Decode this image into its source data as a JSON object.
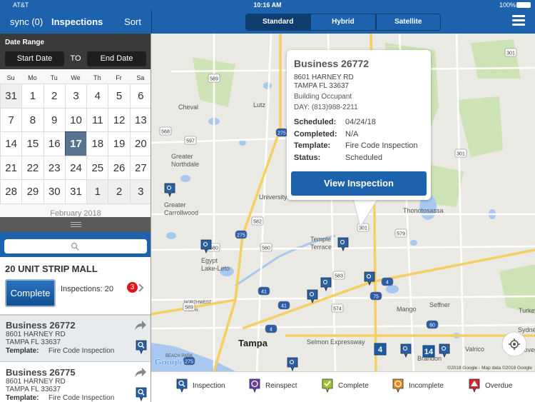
{
  "status_bar": {
    "carrier": "AT&T",
    "time": "10:16 AM",
    "battery": "100%"
  },
  "sidebar": {
    "header": {
      "sync": "sync (0)",
      "title": "Inspections",
      "sort": "Sort"
    },
    "date_range": {
      "label": "Date Range",
      "start": "Start Date",
      "separator": "TO",
      "end": "End Date"
    },
    "calendar": {
      "weekdays": [
        "Su",
        "Mo",
        "Tu",
        "We",
        "Th",
        "Fr",
        "Sa"
      ],
      "weeks": [
        [
          31,
          1,
          2,
          3,
          4,
          5,
          6
        ],
        [
          7,
          8,
          9,
          10,
          11,
          12,
          13
        ],
        [
          14,
          15,
          16,
          17,
          18,
          19,
          20
        ],
        [
          21,
          22,
          23,
          24,
          25,
          26,
          27
        ],
        [
          28,
          29,
          30,
          31,
          1,
          2,
          3
        ]
      ],
      "selected_day": 17,
      "next_month": "February 2018"
    },
    "group": {
      "title": "20 UNIT STRIP MALL",
      "button": "Complete",
      "inspections": "Inspections: 20",
      "badge": 3
    },
    "items": [
      {
        "title": "Business 26772",
        "address": [
          "8601 HARNEY RD",
          "TAMPA FL 33637"
        ],
        "template_label": "Template:",
        "template": "Fire Code Inspection"
      },
      {
        "title": "Business 26775",
        "address": [
          "8601 HARNEY RD",
          "TAMPA FL 33637"
        ],
        "template_label": "Template:",
        "template": "Fire Code Inspection"
      }
    ]
  },
  "map": {
    "tabs": [
      "Standard",
      "Hybrid",
      "Satellite"
    ],
    "selected_tab": "Standard",
    "popup": {
      "title": "Business 26772",
      "address": [
        "8601 HARNEY RD",
        "TAMPA FL 33637"
      ],
      "occupant": "Building Occupant",
      "phone": "DAY: (813)988-2211",
      "fields": [
        {
          "label": "Scheduled:",
          "value": "04/24/18"
        },
        {
          "label": "Completed:",
          "value": "N/A"
        },
        {
          "label": "Template:",
          "value": "Fire Code Inspection"
        },
        {
          "label": "Status:",
          "value": "Scheduled"
        }
      ],
      "button": "View Inspection"
    },
    "places": [
      {
        "lines": [
          "Cheval"
        ]
      },
      {
        "lines": [
          "Lutz"
        ]
      },
      {
        "lines": [
          "Greater",
          "Northdale"
        ]
      },
      {
        "lines": [
          "University"
        ]
      },
      {
        "lines": [
          "Greater",
          "Carrollwood"
        ]
      },
      {
        "lines": [
          "Egypt",
          "Lake-Leto"
        ]
      },
      {
        "lines": [
          "Temple",
          "Terrace"
        ]
      },
      {
        "lines": [
          "Thonotosassa"
        ]
      },
      {
        "lines": [
          "Tampa"
        ]
      },
      {
        "lines": [
          "Mango"
        ]
      },
      {
        "lines": [
          "Seffner"
        ]
      },
      {
        "lines": [
          "Brandon"
        ]
      },
      {
        "lines": [
          "Valrico"
        ]
      },
      {
        "lines": [
          "Sydney"
        ]
      },
      {
        "lines": [
          "Dover"
        ]
      },
      {
        "lines": [
          "Turkey Cree"
        ]
      },
      {
        "lines": [
          "NORTHWEST",
          "TAMPA"
        ]
      },
      {
        "lines": [
          "BEACH PARK"
        ]
      },
      {
        "lines": [
          "Selmon Expressway"
        ]
      }
    ],
    "shields": [
      "589",
      "568",
      "597",
      "275",
      "301",
      "301",
      "582",
      "580",
      "580",
      "275",
      "301",
      "579",
      "583",
      "41",
      "41",
      "574",
      "4",
      "4",
      "75",
      "60",
      "275",
      "589"
    ],
    "clusters": [
      4,
      14
    ],
    "logo": "Google",
    "attribution": "©2018 Google - Map data ©2018 Google"
  },
  "legend": [
    "Inspection",
    "Reinspect",
    "Complete",
    "Incomplete",
    "Overdue"
  ]
}
